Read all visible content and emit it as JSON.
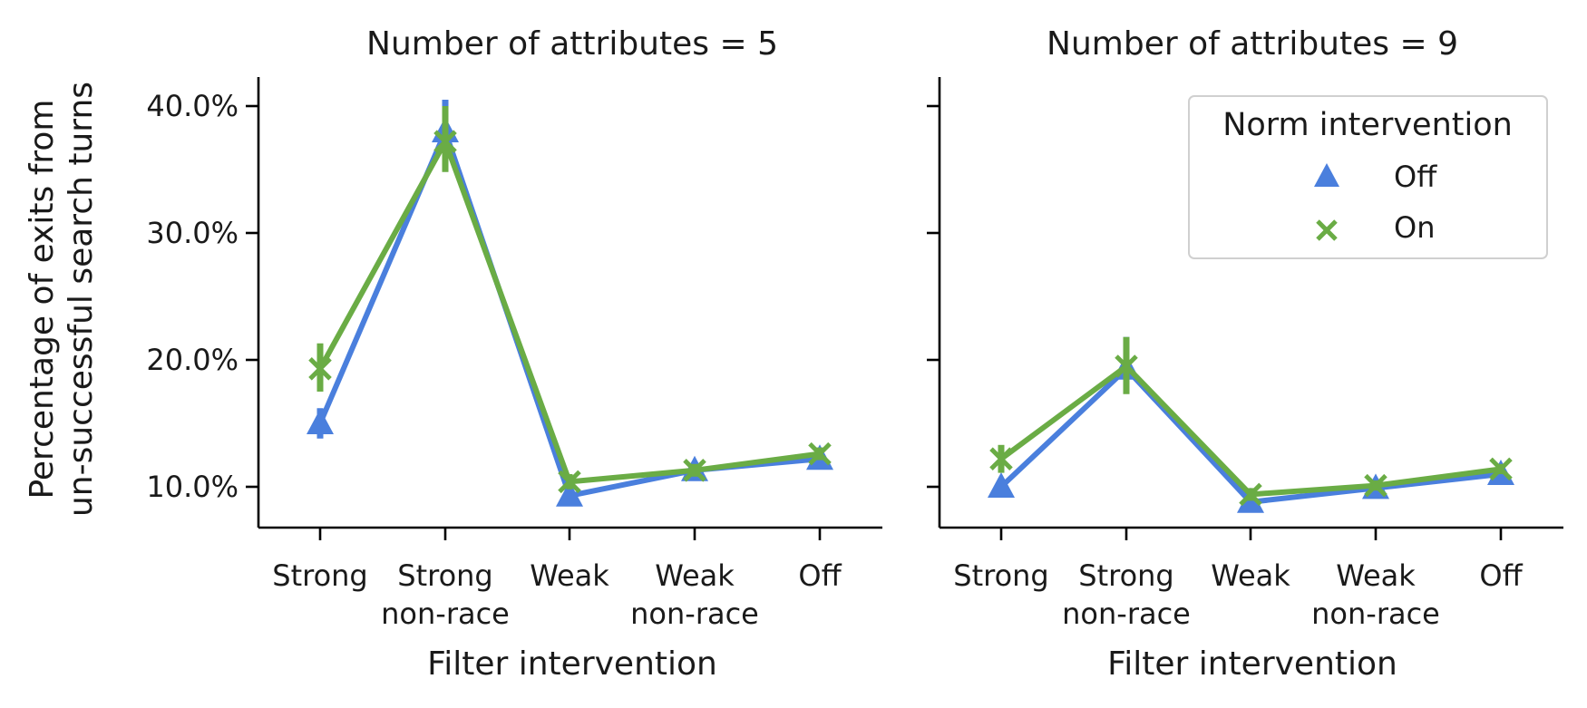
{
  "chart_data": {
    "type": "line",
    "ylabel_lines": [
      "Percentage of exits from",
      "un-successful search turns"
    ],
    "xlabel": "Filter intervention",
    "ylim": [
      0.065,
      0.42
    ],
    "yticks": [
      0.1,
      0.2,
      0.3,
      0.4
    ],
    "ytick_labels": [
      "10.0%",
      "20.0%",
      "30.0%",
      "40.0%"
    ],
    "categories": [
      {
        "line1": "Strong",
        "line2": ""
      },
      {
        "line1": "Strong",
        "line2": "non-race"
      },
      {
        "line1": "Weak",
        "line2": ""
      },
      {
        "line1": "Weak",
        "line2": "non-race"
      },
      {
        "line1": "Off",
        "line2": ""
      }
    ],
    "legend": {
      "title": "Norm intervention",
      "entries": [
        {
          "label": "Off",
          "marker": "triangle",
          "color": "#4a7fdd"
        },
        {
          "label": "On",
          "marker": "x",
          "color": "#6aac45"
        }
      ]
    },
    "panels": [
      {
        "title": "Number of attributes = 5",
        "series": [
          {
            "name": "Off",
            "values": [
              0.15,
              0.38,
              0.093,
              0.113,
              0.122
            ],
            "ci_low": [
              0.138,
              0.36,
              0.087,
              0.108,
              0.117
            ],
            "ci_high": [
              0.162,
              0.405,
              0.099,
              0.118,
              0.127
            ]
          },
          {
            "name": "On",
            "values": [
              0.193,
              0.372,
              0.104,
              0.113,
              0.126
            ],
            "ci_low": [
              0.175,
              0.348,
              0.098,
              0.108,
              0.121
            ],
            "ci_high": [
              0.213,
              0.4,
              0.11,
              0.118,
              0.131
            ]
          }
        ]
      },
      {
        "title": "Number of attributes = 9",
        "series": [
          {
            "name": "Off",
            "values": [
              0.1,
              0.193,
              0.088,
              0.099,
              0.11
            ],
            "ci_low": [
              0.094,
              0.175,
              0.083,
              0.095,
              0.106
            ],
            "ci_high": [
              0.106,
              0.218,
              0.093,
              0.103,
              0.114
            ]
          },
          {
            "name": "On",
            "values": [
              0.122,
              0.195,
              0.094,
              0.101,
              0.114
            ],
            "ci_low": [
              0.111,
              0.173,
              0.089,
              0.097,
              0.11
            ],
            "ci_high": [
              0.133,
              0.218,
              0.099,
              0.105,
              0.118
            ]
          }
        ]
      }
    ]
  }
}
